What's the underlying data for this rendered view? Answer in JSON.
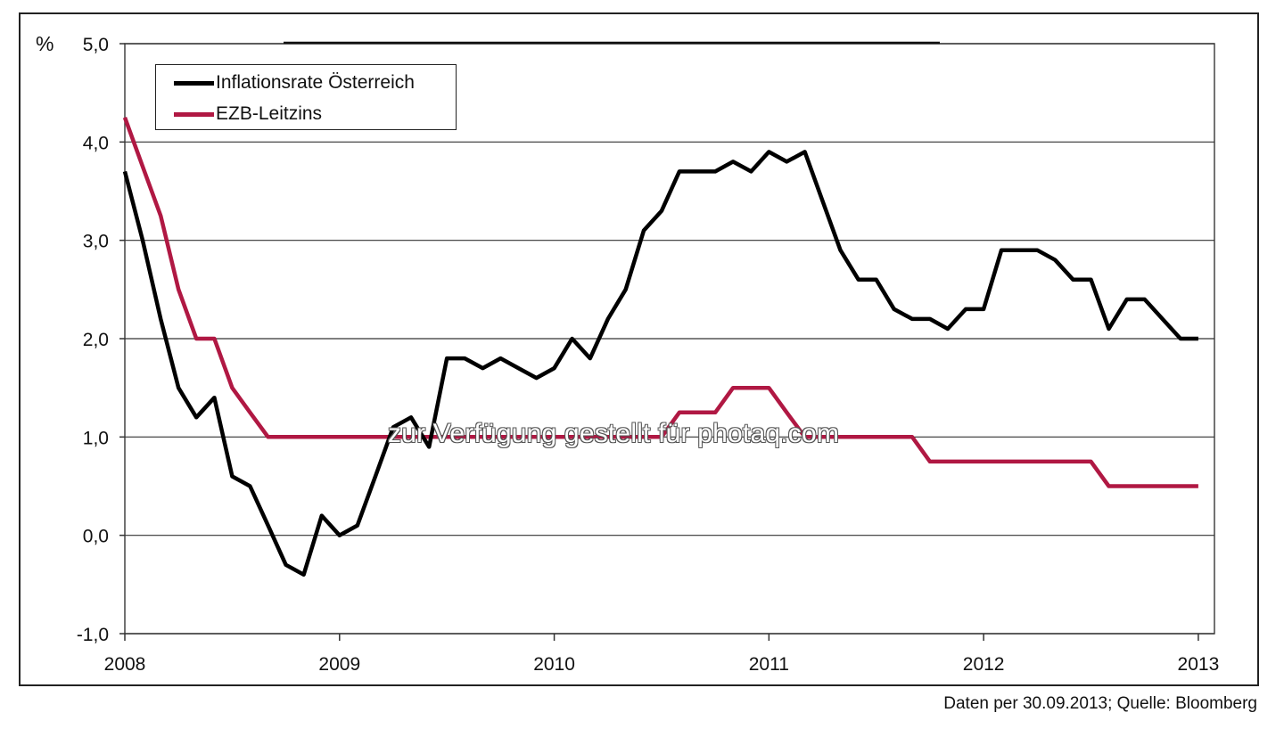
{
  "chart_data": {
    "type": "line",
    "ylabel": "%",
    "ylim": [
      -1.0,
      5.0
    ],
    "yticks": [
      "5,0",
      "4,0",
      "3,0",
      "2,0",
      "1,0",
      "0,0",
      "-1,0"
    ],
    "yticks_values": [
      5,
      4,
      3,
      2,
      1,
      0,
      -1
    ],
    "xticks": [
      "2008",
      "2009",
      "2010",
      "2011",
      "2012",
      "2013"
    ],
    "xticks_values": [
      2008,
      2009,
      2010,
      2011,
      2012,
      2013
    ],
    "grid": true,
    "legend_position": "top-left",
    "series": [
      {
        "name": "Inflationsrate Österreich",
        "color": "#000000",
        "points": [
          [
            2008.0,
            3.7
          ],
          [
            2008.083,
            3.0
          ],
          [
            2008.167,
            2.2
          ],
          [
            2008.25,
            1.5
          ],
          [
            2008.333,
            1.2
          ],
          [
            2008.417,
            1.4
          ],
          [
            2008.5,
            0.6
          ],
          [
            2008.583,
            0.5
          ],
          [
            2008.667,
            0.1
          ],
          [
            2008.75,
            -0.3
          ],
          [
            2008.833,
            -0.4
          ],
          [
            2008.917,
            0.2
          ],
          [
            2009.0,
            0.0
          ],
          [
            2009.083,
            0.1
          ],
          [
            2009.167,
            0.6
          ],
          [
            2009.25,
            1.1
          ],
          [
            2009.333,
            1.2
          ],
          [
            2009.417,
            0.9
          ],
          [
            2009.5,
            1.8
          ],
          [
            2009.583,
            1.8
          ],
          [
            2009.667,
            1.7
          ],
          [
            2009.75,
            1.8
          ],
          [
            2009.833,
            1.7
          ],
          [
            2009.917,
            1.6
          ],
          [
            2010.0,
            1.7
          ],
          [
            2010.083,
            2.0
          ],
          [
            2010.167,
            1.8
          ],
          [
            2010.25,
            2.2
          ],
          [
            2010.333,
            2.5
          ],
          [
            2010.417,
            3.1
          ],
          [
            2010.5,
            3.3
          ],
          [
            2010.583,
            3.7
          ],
          [
            2010.667,
            3.7
          ],
          [
            2010.75,
            3.7
          ],
          [
            2010.833,
            3.8
          ],
          [
            2010.917,
            3.7
          ],
          [
            2011.0,
            3.9
          ],
          [
            2011.083,
            3.8
          ],
          [
            2011.167,
            3.9
          ],
          [
            2011.25,
            3.4
          ],
          [
            2011.333,
            2.9
          ],
          [
            2011.417,
            2.6
          ],
          [
            2011.5,
            2.6
          ],
          [
            2011.583,
            2.3
          ],
          [
            2011.667,
            2.2
          ],
          [
            2011.75,
            2.2
          ],
          [
            2011.833,
            2.1
          ],
          [
            2011.917,
            2.3
          ],
          [
            2012.0,
            2.3
          ],
          [
            2012.083,
            2.9
          ],
          [
            2012.167,
            2.9
          ],
          [
            2012.25,
            2.9
          ],
          [
            2012.333,
            2.8
          ],
          [
            2012.417,
            2.6
          ],
          [
            2012.5,
            2.6
          ],
          [
            2012.583,
            2.1
          ],
          [
            2012.667,
            2.4
          ],
          [
            2012.75,
            2.4
          ],
          [
            2012.833,
            2.2
          ],
          [
            2012.917,
            2.0
          ],
          [
            2013.0,
            2.0
          ]
        ]
      },
      {
        "name": "EZB-Leitzins",
        "color": "#b01843",
        "points": [
          [
            2008.0,
            4.25
          ],
          [
            2008.083,
            3.75
          ],
          [
            2008.167,
            3.25
          ],
          [
            2008.25,
            2.5
          ],
          [
            2008.333,
            2.0
          ],
          [
            2008.417,
            2.0
          ],
          [
            2008.5,
            1.5
          ],
          [
            2008.583,
            1.25
          ],
          [
            2008.667,
            1.0
          ],
          [
            2010.5,
            1.0
          ],
          [
            2010.583,
            1.25
          ],
          [
            2010.75,
            1.25
          ],
          [
            2010.833,
            1.5
          ],
          [
            2011.0,
            1.5
          ],
          [
            2011.083,
            1.25
          ],
          [
            2011.167,
            1.0
          ],
          [
            2011.667,
            1.0
          ],
          [
            2011.75,
            0.75
          ],
          [
            2012.5,
            0.75
          ],
          [
            2012.583,
            0.5
          ],
          [
            2013.0,
            0.5
          ]
        ]
      }
    ]
  },
  "legend": [
    {
      "label": "Inflationsrate Österreich",
      "color": "#000000"
    },
    {
      "label": "EZB-Leitzins",
      "color": "#b01843"
    }
  ],
  "source_note": "Daten per 30.09.2013; Quelle: Bloomberg",
  "watermark": "zur Verfügung gestellt für photaq.com"
}
